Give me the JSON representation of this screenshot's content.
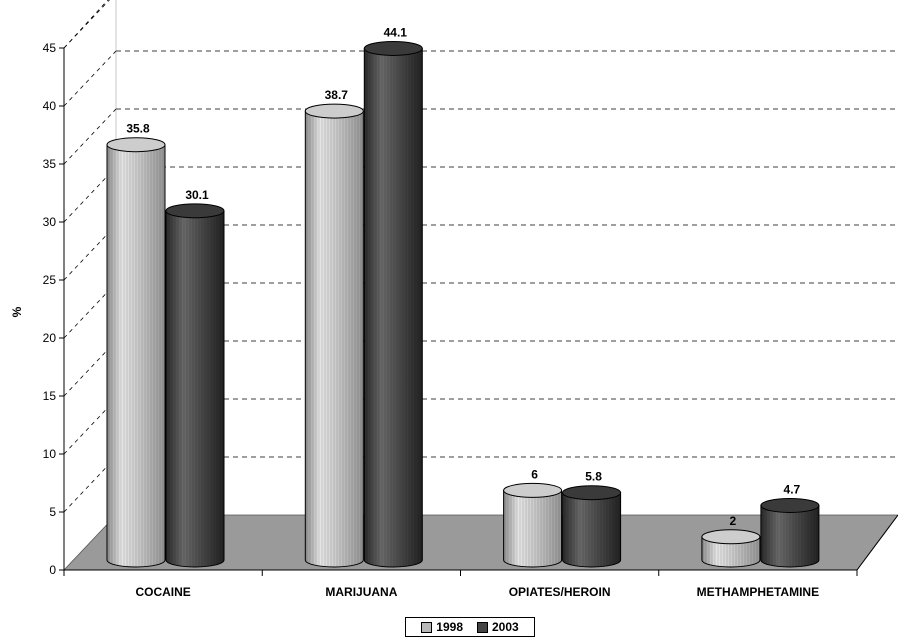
{
  "chart_data": {
    "type": "bar",
    "style": "3d-cylinder",
    "title": "",
    "xlabel": "",
    "ylabel": "%",
    "ylim": [
      0,
      45
    ],
    "yticks": [
      0,
      5,
      10,
      15,
      20,
      25,
      30,
      35,
      40,
      45
    ],
    "grid": true,
    "legend_position": "bottom",
    "categories": [
      "COCAINE",
      "MARIJUANA",
      "OPIATES/HEROIN",
      "METHAMPHETAMINE"
    ],
    "series": [
      {
        "name": "1998",
        "values": [
          35.8,
          38.7,
          6,
          2
        ],
        "labels": [
          "35.8",
          "38.7",
          "6",
          "2"
        ],
        "color": "#b8b8b8"
      },
      {
        "name": "2003",
        "values": [
          30.1,
          44.1,
          5.8,
          4.7
        ],
        "labels": [
          "30.1",
          "44.1",
          "5.8",
          "4.7"
        ],
        "color": "#444444"
      }
    ],
    "floor_color": "#9a9a9a"
  }
}
